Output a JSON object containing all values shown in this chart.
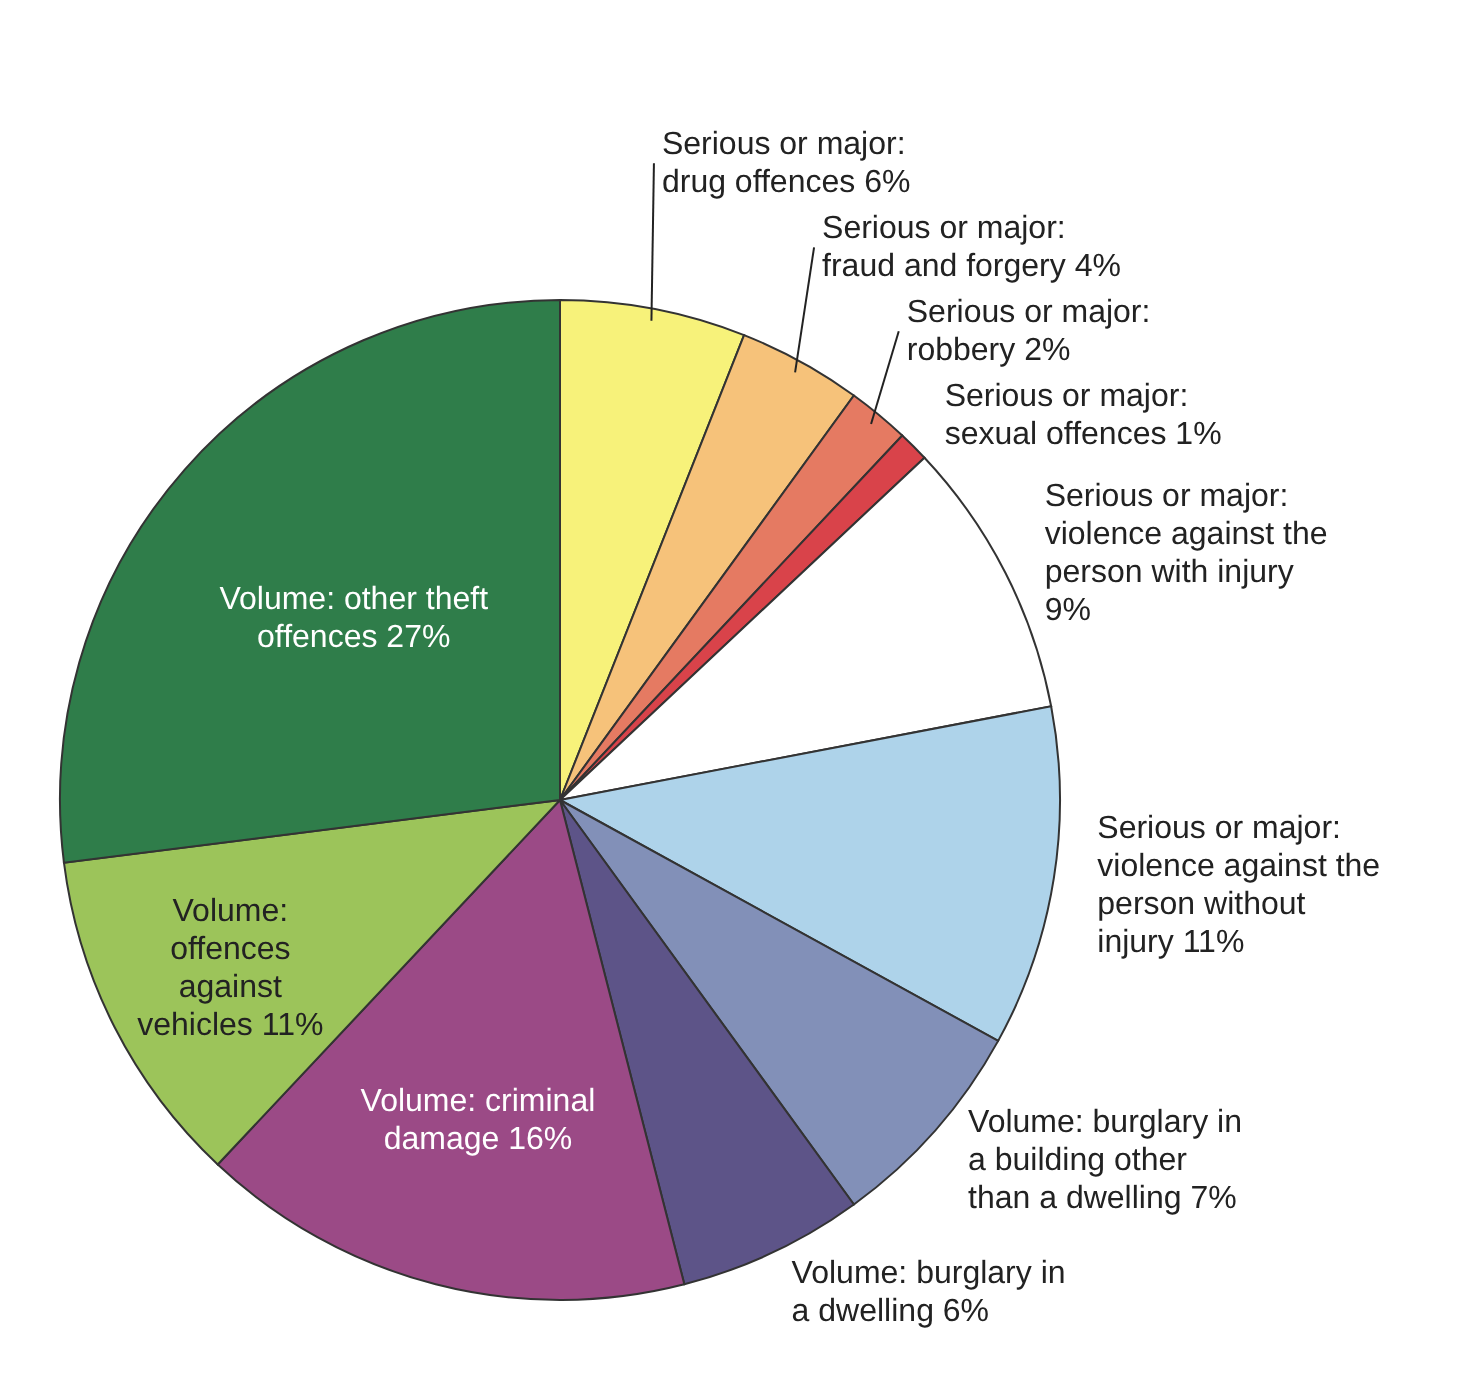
{
  "chart_data": {
    "type": "pie",
    "categories": [
      "Serious or major: drug offences",
      "Serious or major: fraud and forgery",
      "Serious or major: robbery",
      "Serious or major: sexual offences",
      "Serious or major: violence against the person with injury",
      "Serious or major: violence against the person without injury",
      "Volume: burglary in a building other than a dwelling",
      "Volume: burglary in a dwelling",
      "Volume: criminal damage",
      "Volume: offences against vehicles",
      "Volume: other theft offences"
    ],
    "values": [
      6,
      4,
      2,
      1,
      9,
      11,
      7,
      6,
      16,
      11,
      27
    ],
    "value_labels": [
      "6%",
      "4%",
      "2%",
      "1%",
      "9%",
      "11%",
      "7%",
      "6%",
      "16%",
      "11%",
      "27%"
    ],
    "colors": [
      "#f7f27a",
      "#f6c27a",
      "#e57a62",
      "#d9434a",
      "#ffffff",
      "#aed3ea",
      "#8290b8",
      "#5d5488",
      "#9b4a86",
      "#9cc45a",
      "#2f7d4a"
    ]
  }
}
